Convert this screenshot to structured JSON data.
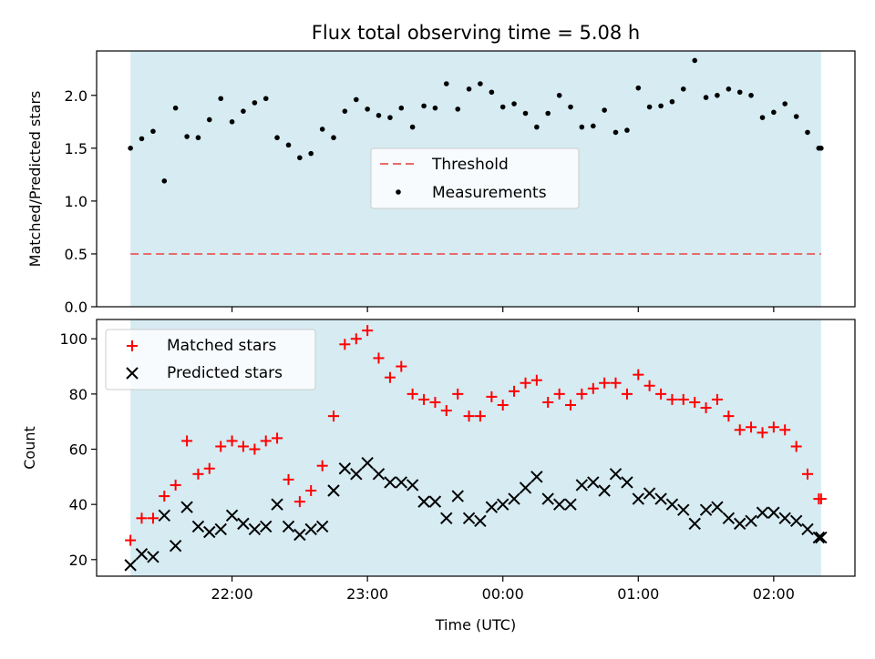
{
  "figure": {
    "title": "Flux total observing time = 5.08 h",
    "xlabel": "Time (UTC)",
    "x_ticks": [
      "22:00",
      "23:00",
      "00:00",
      "01:00",
      "02:00"
    ],
    "x_tick_values": [
      22.0,
      23.0,
      24.0,
      25.0,
      26.0
    ],
    "xlim": [
      21.0,
      26.6
    ],
    "shaded_span": [
      21.25,
      26.35
    ],
    "shade_color": "#add8e6"
  },
  "chart_data": [
    {
      "type": "scatter",
      "ylabel": "Matched/Predicted stars",
      "ylim": [
        0,
        2.42
      ],
      "y_ticks": [
        "0.0",
        "0.5",
        "1.0",
        "1.5",
        "2.0"
      ],
      "y_tick_values": [
        0.0,
        0.5,
        1.0,
        1.5,
        2.0
      ],
      "threshold": 0.5,
      "legend": {
        "placement": "center",
        "threshold_label": "Threshold",
        "measurements_label": "Measurements"
      },
      "x": [
        21.25,
        21.333,
        21.417,
        21.5,
        21.583,
        21.667,
        21.75,
        21.833,
        21.917,
        22.0,
        22.083,
        22.167,
        22.25,
        22.333,
        22.417,
        22.5,
        22.583,
        22.667,
        22.75,
        22.833,
        22.917,
        23.0,
        23.083,
        23.167,
        23.25,
        23.333,
        23.417,
        23.5,
        23.583,
        23.667,
        23.75,
        23.833,
        23.917,
        24.0,
        24.083,
        24.167,
        24.25,
        24.333,
        24.417,
        24.5,
        24.583,
        24.667,
        24.75,
        24.833,
        24.917,
        25.0,
        25.083,
        25.167,
        25.25,
        25.333,
        25.417,
        25.5,
        25.583,
        25.667,
        25.75,
        25.833,
        25.917,
        26.0,
        26.083,
        26.167,
        26.25,
        26.333,
        26.35
      ],
      "values": [
        1.5,
        1.59,
        1.66,
        1.19,
        1.88,
        1.61,
        1.6,
        1.77,
        1.97,
        1.75,
        1.85,
        1.93,
        1.97,
        1.6,
        1.53,
        1.41,
        1.45,
        1.68,
        1.6,
        1.85,
        1.96,
        1.87,
        1.81,
        1.79,
        1.88,
        1.7,
        1.9,
        1.88,
        2.11,
        1.87,
        2.06,
        2.11,
        2.03,
        1.89,
        1.92,
        1.83,
        1.7,
        1.83,
        2.0,
        1.89,
        1.7,
        1.71,
        1.86,
        1.65,
        1.67,
        2.07,
        1.89,
        1.9,
        1.94,
        2.06,
        2.33,
        1.98,
        2.0,
        2.06,
        2.03,
        2.0,
        1.79,
        1.84,
        1.92,
        1.8,
        1.65,
        1.5,
        1.5
      ],
      "colors": {
        "threshold": "#e86b6b",
        "measurements": "#000000"
      }
    },
    {
      "type": "scatter",
      "ylabel": "Count",
      "ylim": [
        14,
        107
      ],
      "y_ticks": [
        "20",
        "40",
        "60",
        "80",
        "100"
      ],
      "y_tick_values": [
        20,
        40,
        60,
        80,
        100
      ],
      "legend": {
        "placement": "top-left",
        "matched_label": "Matched stars",
        "predicted_label": "Predicted stars"
      },
      "x": [
        21.25,
        21.333,
        21.417,
        21.5,
        21.583,
        21.667,
        21.75,
        21.833,
        21.917,
        22.0,
        22.083,
        22.167,
        22.25,
        22.333,
        22.417,
        22.5,
        22.583,
        22.667,
        22.75,
        22.833,
        22.917,
        23.0,
        23.083,
        23.167,
        23.25,
        23.333,
        23.417,
        23.5,
        23.583,
        23.667,
        23.75,
        23.833,
        23.917,
        24.0,
        24.083,
        24.167,
        24.25,
        24.333,
        24.417,
        24.5,
        24.583,
        24.667,
        24.75,
        24.833,
        24.917,
        25.0,
        25.083,
        25.167,
        25.25,
        25.333,
        25.417,
        25.5,
        25.583,
        25.667,
        25.75,
        25.833,
        25.917,
        26.0,
        26.083,
        26.167,
        26.25,
        26.333,
        26.35
      ],
      "series": [
        {
          "name": "Matched stars",
          "color": "#ff0000",
          "values": [
            27,
            35,
            35,
            43,
            47,
            63,
            51,
            53,
            61,
            63,
            61,
            60,
            63,
            64,
            49,
            41,
            45,
            54,
            72,
            98,
            100,
            103,
            93,
            86,
            90,
            80,
            78,
            77,
            74,
            80,
            72,
            72,
            79,
            76,
            81,
            84,
            85,
            77,
            80,
            76,
            80,
            82,
            84,
            84,
            80,
            87,
            83,
            80,
            78,
            78,
            77,
            75,
            78,
            72,
            67,
            68,
            66,
            68,
            67,
            61,
            51,
            42,
            42
          ]
        },
        {
          "name": "Predicted stars",
          "color": "#000000",
          "values": [
            18,
            22,
            21,
            36,
            25,
            39,
            32,
            30,
            31,
            36,
            33,
            31,
            32,
            40,
            32,
            29,
            31,
            32,
            45,
            53,
            51,
            55,
            51,
            48,
            48,
            47,
            41,
            41,
            35,
            43,
            35,
            34,
            39,
            40,
            42,
            46,
            50,
            42,
            40,
            40,
            47,
            48,
            45,
            51,
            48,
            42,
            44,
            42,
            40,
            38,
            33,
            38,
            39,
            35,
            33,
            34,
            37,
            37,
            35,
            34,
            31,
            28,
            28
          ]
        }
      ]
    }
  ]
}
